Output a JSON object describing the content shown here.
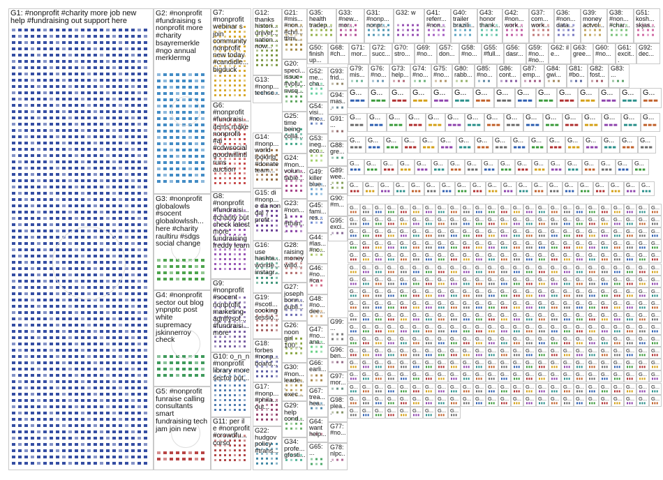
{
  "groups": [
    {
      "id": "G1",
      "label": "G1: #nonprofit #charity more job new help #fundraising out support here",
      "color": "#1f3b99"
    },
    {
      "id": "G2",
      "label": "G2: #nonprofit #fundraising s nonprofit more #charity bsayremerkle #ngo annual merklermg",
      "color": "#2f7fbf"
    },
    {
      "id": "G3",
      "label": "G3: #nonprofit globalowls #socent globalowlssh... here #charity raultiru #sdgs social change",
      "color": "#3a9a3a"
    },
    {
      "id": "G4",
      "label": "G4: #nonprofit sector out blog ynpnptc post white supremacy jskinnerroy check",
      "color": "#2a8f4a"
    },
    {
      "id": "G5",
      "label": "G5: #nonprofit funraise calling consultants smart fundraising tech jam join new",
      "color": "#b03030"
    },
    {
      "id": "G6",
      "label": "G6: #nonprofit #fundraisi... items make nonprofit #ai #cdwsocial goodwillintl runs auction",
      "color": "#c23a3a"
    },
    {
      "id": "G7",
      "label": "G7: #nonprofit webinar s join community nonprofit new today #candidle... bigduck",
      "color": "#d4a017"
    },
    {
      "id": "G8",
      "label": "G8: #nonprofit #fundraisi... #charity out check latest more fundraising freddy learn",
      "color": "#8e44ad"
    },
    {
      "id": "G9",
      "label": "G9: #nonprofit #socent nonprofit marketing agnifysol... #fundraisi... more",
      "color": "#6b4f9a"
    },
    {
      "id": "G10",
      "label": "G10: o_n_n #nonprofit library more sector out...",
      "color": "#3d6fa8"
    },
    {
      "id": "G11",
      "label": "G11: per il e #nonprofit #crowdfu... corso",
      "color": "#a33"
    },
    {
      "id": "G12",
      "label": "G12: thanks histori... univer... nation... now...",
      "color": "#6a8a2a"
    },
    {
      "id": "G13",
      "label": "G13: #nonp... techso...",
      "color": "#2a6a8a"
    },
    {
      "id": "G14",
      "label": "G14: #nonp... world looking #donate team...",
      "color": "#8a5a2a"
    },
    {
      "id": "G15",
      "label": "G15: di #nonp... e da non dal 7 profit",
      "color": "#5a2a8a"
    },
    {
      "id": "G16",
      "label": "G16: use hashta... wonde... instagr...",
      "color": "#2a8a6a"
    },
    {
      "id": "G17",
      "label": "G17: #nonp... #phila... out...",
      "color": "#8a2a5a"
    },
    {
      "id": "G18",
      "label": "G18: forbes #nonp... board...",
      "color": "#4a4a9a"
    },
    {
      "id": "G19",
      "label": "G19: #scotl... cooking sessio...",
      "color": "#9a4a4a"
    },
    {
      "id": "G20",
      "label": "G20: speci... issue #volu... nvsq...",
      "color": "#4a9a4a"
    },
    {
      "id": "G21",
      "label": "G21: #mis... #non... #chri... ttlmi...",
      "color": "#9a7a2a"
    },
    {
      "id": "G22",
      "label": "G22: hudgov policy #trans...",
      "color": "#2a7a9a"
    },
    {
      "id": "G23",
      "label": "G23: #non... 1 #than...",
      "color": "#7a2a9a"
    },
    {
      "id": "G24",
      "label": "G24: #non... volun... table...",
      "color": "#9a2a7a"
    },
    {
      "id": "G25",
      "label": "G25: time being colla...",
      "color": "#2a9a7a"
    },
    {
      "id": "G26",
      "label": "G26: noon girl 100...",
      "color": "#7a9a2a"
    },
    {
      "id": "G27",
      "label": "G27: joseph bonn... publi...",
      "color": "#5a5aaa"
    },
    {
      "id": "G28",
      "label": "G28: raising money willo...",
      "color": "#aa5a5a"
    },
    {
      "id": "G29",
      "label": "G29: help cond...",
      "color": "#5aaa5a"
    },
    {
      "id": "G30",
      "label": "G30: #non... leade... exec...",
      "color": "#aa8a3a"
    },
    {
      "id": "G31",
      "label": "G31: #nonp... nonpr...",
      "color": "#3a8aaa"
    },
    {
      "id": "G32",
      "label": "G32: w",
      "color": "#8a3aaa"
    },
    {
      "id": "G33",
      "label": "G33: #new... mor...",
      "color": "#aa3a8a"
    },
    {
      "id": "G34",
      "label": "G34: profe... gfosti...",
      "color": "#3aaa8a"
    },
    {
      "id": "G35",
      "label": "G35: health tradep...",
      "color": "#8aaa3a"
    },
    {
      "id": "G36",
      "label": "G36: #non... data...",
      "color": "#6a6abb"
    },
    {
      "id": "G37",
      "label": "G37: com... work...",
      "color": "#bb6a6a"
    },
    {
      "id": "G38",
      "label": "G38: #non... #char...",
      "color": "#6abb6a"
    },
    {
      "id": "G39",
      "label": "G39: money actvol...",
      "color": "#bb9a4a"
    },
    {
      "id": "G40",
      "label": "G40: trailer brazili...",
      "color": "#4a9abb"
    },
    {
      "id": "G41",
      "label": "G41: referr... #non...",
      "color": "#9a4abb"
    },
    {
      "id": "G42",
      "label": "G42: #non... work...",
      "color": "#bb4a9a"
    },
    {
      "id": "G43",
      "label": "G43: honor thank...",
      "color": "#4abb9a"
    },
    {
      "id": "G44",
      "label": "G44: #las... #no...",
      "color": "#9abb4a"
    },
    {
      "id": "G45",
      "label": "G45: fami... res...",
      "color": "#5a7acc"
    },
    {
      "id": "G46",
      "label": "G46: #no... #ca",
      "color": "#cc5a7a"
    },
    {
      "id": "G47",
      "label": "G47: #no... ana...",
      "color": "#5acc7a"
    },
    {
      "id": "G48",
      "label": "G48: #no... dee...",
      "color": "#cc9a5a"
    },
    {
      "id": "G49",
      "label": "G49: killer blue...",
      "color": "#5a9acc"
    },
    {
      "id": "G50",
      "label": "G50: finish up...",
      "color": "#9a5acc"
    },
    {
      "id": "G51",
      "label": "G51: kosh... skjas...",
      "color": "#cc5a9a"
    },
    {
      "id": "G52",
      "label": "G52: me... cha...",
      "color": "#5acc9a"
    },
    {
      "id": "G53",
      "label": "G53: ineg... eco...",
      "color": "#9acc5a"
    },
    {
      "id": "G54",
      "label": "G54: visi... #no...",
      "color": "#4a6ab0"
    },
    {
      "id": "G55",
      "label": "G55: #full...",
      "color": "#b04a6a"
    },
    {
      "id": "G56",
      "label": "G56: dasr...",
      "color": "#4ab06a"
    },
    {
      "id": "G57",
      "label": "G57: don...",
      "color": "#b08a4a"
    },
    {
      "id": "G58",
      "label": "G58: #no...",
      "color": "#4a8ab0"
    },
    {
      "id": "G59",
      "label": "G59: #no... #no...",
      "color": "#8a4ab0"
    },
    {
      "id": "G60",
      "label": "G60: #no...",
      "color": "#b04a8a"
    },
    {
      "id": "G61",
      "label": "G61: excit...",
      "color": "#4ab08a"
    },
    {
      "id": "G62",
      "label": "G62: il e...",
      "color": "#8ab04a"
    },
    {
      "id": "G63",
      "label": "G63: gree...",
      "color": "#3a5aa0"
    },
    {
      "id": "G64",
      "label": "G64: want help...",
      "color": "#a03a5a"
    },
    {
      "id": "G65",
      "label": "G65: ...",
      "color": "#3aa05a"
    },
    {
      "id": "G66",
      "label": "G66: earli...",
      "color": "#a07a3a"
    },
    {
      "id": "G67",
      "label": "G67: trea... hea...",
      "color": "#3a7aa0"
    },
    {
      "id": "G68",
      "label": "G68: #ch...",
      "color": "#7a3aa0"
    },
    {
      "id": "G69",
      "label": "G69: #no...",
      "color": "#a03a7a"
    },
    {
      "id": "G70",
      "label": "G70: stro...",
      "color": "#3aa07a"
    },
    {
      "id": "G71",
      "label": "G71: mor...",
      "color": "#7aa03a"
    },
    {
      "id": "G72",
      "label": "G72: succ...",
      "color": "#5a6aa8"
    },
    {
      "id": "G73",
      "label": "G73: help...",
      "color": "#a85a6a"
    },
    {
      "id": "G74",
      "label": "G74: #no...",
      "color": "#5aa86a"
    },
    {
      "id": "G75",
      "label": "G75: #no...",
      "color": "#a88a5a"
    },
    {
      "id": "G76",
      "label": "G76: #no...",
      "color": "#5a8aa8"
    },
    {
      "id": "G77",
      "label": "G77: #no...",
      "color": "#8a5aa8"
    },
    {
      "id": "G78",
      "label": "G78: nlpc...",
      "color": "#a85a8a"
    },
    {
      "id": "G79",
      "label": "G79: mis...",
      "color": "#5aa88a"
    },
    {
      "id": "G80",
      "label": "G80: rabb...",
      "color": "#8aa85a"
    },
    {
      "id": "G81",
      "label": "G81: #bo...",
      "color": "#4a5a98"
    },
    {
      "id": "G82",
      "label": "G82: fost...",
      "color": "#984a5a"
    },
    {
      "id": "G83",
      "label": "G83: ...",
      "color": "#4a985a"
    },
    {
      "id": "G84",
      "label": "G84: gwi...",
      "color": "#987a4a"
    },
    {
      "id": "G85",
      "label": "G85: #no...",
      "color": "#4a7a98"
    },
    {
      "id": "G86",
      "label": "G86: cont...",
      "color": "#7a4a98"
    },
    {
      "id": "G87",
      "label": "G87: emp...",
      "color": "#984a7a"
    },
    {
      "id": "G88",
      "label": "G88: gre...",
      "color": "#4a987a"
    },
    {
      "id": "G89",
      "label": "G89: wee...",
      "color": "#7a984a"
    },
    {
      "id": "G90",
      "label": "G90: #m...",
      "color": "#5a5a88"
    },
    {
      "id": "G91",
      "label": "G91: ...",
      "color": "#885a5a"
    },
    {
      "id": "G92",
      "label": "G92: dec...",
      "color": "#5a885a"
    },
    {
      "id": "G93",
      "label": "G93: frid...",
      "color": "#887a5a"
    },
    {
      "id": "G94",
      "label": "G94: mas...",
      "color": "#5a7a88"
    },
    {
      "id": "G95",
      "label": "G95: exci...",
      "color": "#7a5a88"
    },
    {
      "id": "G96",
      "label": "G96: ben...",
      "color": "#885a7a"
    },
    {
      "id": "G97",
      "label": "G97: mor...",
      "color": "#5a887a"
    },
    {
      "id": "G98",
      "label": "G98: plea...",
      "color": "#7a885a"
    },
    {
      "id": "G99",
      "label": "G99: ...",
      "color": "#6a6a6a"
    }
  ],
  "small_group_label": "G...",
  "small_group_count": 520
}
